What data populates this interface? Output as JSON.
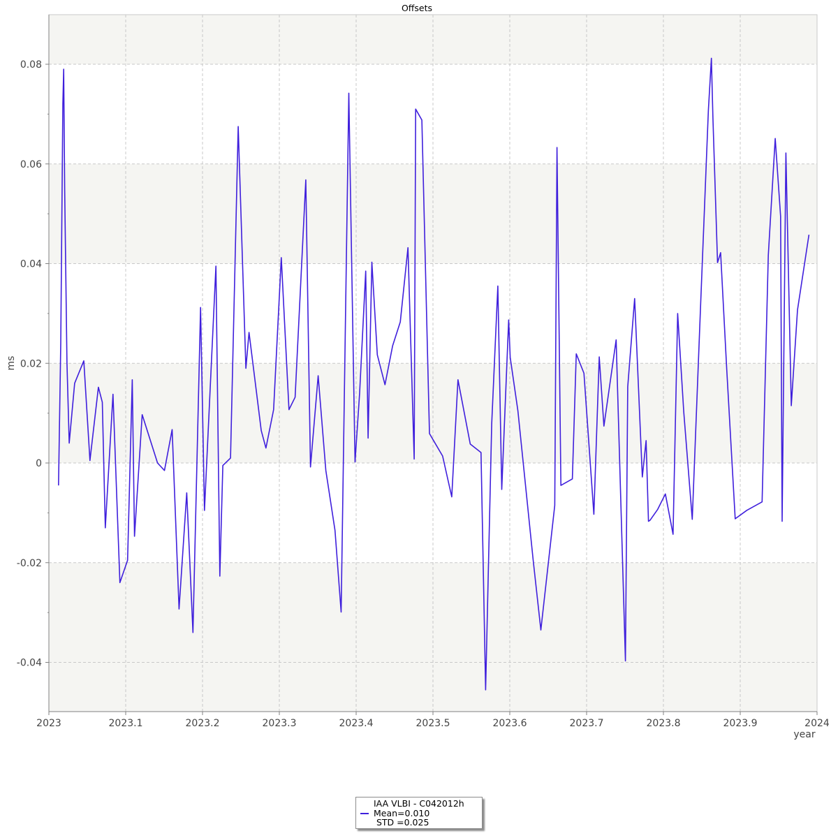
{
  "chart_data": {
    "type": "line",
    "title": "Offsets",
    "xlabel": "year",
    "ylabel": "ms",
    "xlim": [
      2023.0,
      2024.0
    ],
    "ylim": [
      -0.05,
      0.09
    ],
    "x_ticks": [
      2023,
      2023.1,
      2023.2,
      2023.3,
      2023.4,
      2023.5,
      2023.6,
      2023.7,
      2023.8,
      2023.9,
      2024
    ],
    "x_tick_labels": [
      "2023",
      "2023.1",
      "2023.2",
      "2023.3",
      "2023.4",
      "2023.5",
      "2023.6",
      "2023.7",
      "2023.8",
      "2023.9",
      "2024"
    ],
    "y_ticks": [
      -0.04,
      -0.02,
      0,
      0.02,
      0.04,
      0.06,
      0.08
    ],
    "y_tick_labels": [
      "-0.04",
      "-0.02",
      "0",
      "0.02",
      "0.04",
      "0.06",
      "0.08"
    ],
    "grid": true,
    "band_color": "#f5f5f2",
    "line_color": "#3f1fdc",
    "legend": {
      "position": "bottom-center",
      "lines": [
        "IAA VLBI - C042012h",
        "Mean=0.010",
        " STD =0.025"
      ]
    },
    "series": [
      {
        "name": "IAA VLBI - C042012h",
        "x": [
          2023.0125,
          2023.0155,
          2023.0182,
          2023.0193,
          2023.0205,
          2023.0235,
          2023.0265,
          2023.0335,
          2023.0455,
          2023.0535,
          2023.0645,
          2023.0695,
          2023.0735,
          2023.0835,
          2023.0925,
          2023.1025,
          2023.1085,
          2023.1115,
          2023.1215,
          2023.1415,
          2023.1505,
          2023.1605,
          2023.1695,
          2023.1795,
          2023.1875,
          2023.1975,
          2023.2025,
          2023.2175,
          2023.2225,
          2023.2265,
          2023.2365,
          2023.2465,
          2023.2565,
          2023.2605,
          2023.2765,
          2023.2825,
          2023.2925,
          2023.3025,
          2023.3125,
          2023.3205,
          2023.3345,
          2023.3405,
          2023.3505,
          2023.3605,
          2023.3725,
          2023.3805,
          2023.3905,
          2023.3985,
          2023.4045,
          2023.4125,
          2023.4155,
          2023.4205,
          2023.4275,
          2023.4375,
          2023.4475,
          2023.4575,
          2023.4675,
          2023.4755,
          2023.4775,
          2023.4855,
          2023.4955,
          2023.5125,
          2023.5245,
          2023.5325,
          2023.5485,
          2023.5625,
          2023.5685,
          2023.5765,
          2023.5845,
          2023.5895,
          2023.5985,
          2023.6005,
          2023.6105,
          2023.6305,
          2023.6405,
          2023.6585,
          2023.6615,
          2023.6665,
          2023.6815,
          2023.6865,
          2023.6965,
          2023.7095,
          2023.7165,
          2023.7225,
          2023.7385,
          2023.7505,
          2023.7535,
          2023.7625,
          2023.7725,
          2023.7775,
          2023.7805,
          2023.7825,
          2023.7925,
          2023.8025,
          2023.8125,
          2023.8185,
          2023.8265,
          2023.8375,
          2023.8485,
          2023.8585,
          2023.8625,
          2023.8645,
          2023.8705,
          2023.8745,
          2023.8825,
          2023.8935,
          2023.9085,
          2023.9285,
          2023.9365,
          2023.9455,
          2023.9525,
          2023.9545,
          2023.9595,
          2023.9665,
          2023.9745,
          2023.9895
        ],
        "values": [
          -0.0045,
          0.024,
          0.072,
          0.079,
          0.055,
          0.02,
          0.004,
          0.016,
          0.0205,
          0.0005,
          0.0152,
          0.0122,
          -0.013,
          0.0138,
          -0.024,
          -0.0195,
          0.0167,
          -0.0147,
          0.0097,
          0.0,
          -0.0015,
          0.0067,
          -0.0293,
          -0.006,
          -0.034,
          0.0312,
          -0.0095,
          0.0395,
          -0.0227,
          -0.0005,
          0.001,
          0.0675,
          0.019,
          0.0262,
          0.0065,
          0.003,
          0.0107,
          0.0412,
          0.0107,
          0.0132,
          0.0568,
          -0.0008,
          0.0175,
          -0.0015,
          -0.0135,
          -0.0299,
          0.0742,
          0.0002,
          0.0141,
          0.0385,
          0.005,
          0.0403,
          0.0217,
          0.0157,
          0.0235,
          0.0283,
          0.0432,
          0.0008,
          0.071,
          0.0688,
          0.0059,
          0.0014,
          -0.0068,
          0.0167,
          0.0038,
          0.0021,
          -0.0455,
          0.0078,
          0.0355,
          -0.0053,
          0.0287,
          0.0212,
          0.0105,
          -0.0195,
          -0.0335,
          -0.0085,
          0.0633,
          -0.0045,
          -0.0032,
          0.0219,
          0.018,
          -0.0103,
          0.0213,
          0.0074,
          0.0247,
          -0.0397,
          0.0153,
          0.033,
          -0.0028,
          0.0045,
          -0.0117,
          -0.0115,
          -0.0093,
          -0.0062,
          -0.0143,
          0.03,
          0.0103,
          -0.0113,
          0.0322,
          0.0708,
          0.0812,
          0.0692,
          0.0402,
          0.0422,
          0.0187,
          -0.0112,
          -0.0095,
          -0.0078,
          0.0417,
          0.0651,
          0.0495,
          -0.0117,
          0.0622,
          0.0115,
          0.0307,
          0.0458
        ]
      }
    ]
  }
}
